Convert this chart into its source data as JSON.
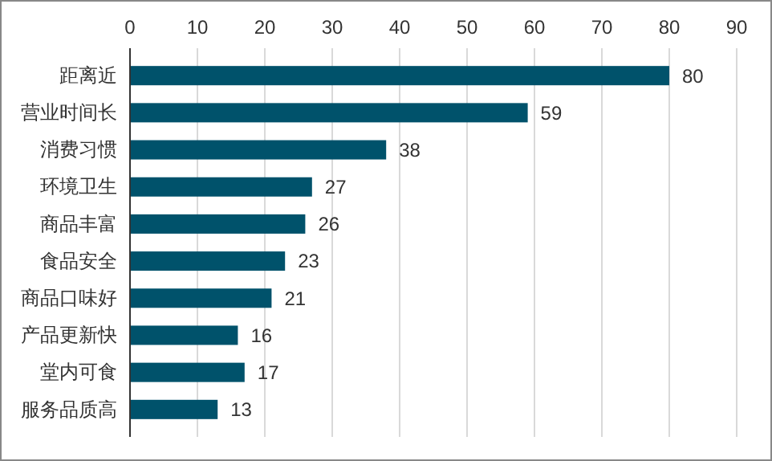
{
  "chart_data": {
    "type": "bar",
    "orientation": "horizontal",
    "categories": [
      "距离近",
      "营业时间长",
      "消费习惯",
      "环境卫生",
      "商品丰富",
      "食品安全",
      "商品口味好",
      "产品更新快",
      "堂内可食",
      "服务品质高"
    ],
    "values": [
      80,
      59,
      38,
      27,
      26,
      23,
      21,
      16,
      17,
      13
    ],
    "color": "#00526b",
    "xlim": [
      0,
      90
    ],
    "xticks": [
      0,
      10,
      20,
      30,
      40,
      50,
      60,
      70,
      80,
      90
    ],
    "grid": "x",
    "data_labels": true
  }
}
